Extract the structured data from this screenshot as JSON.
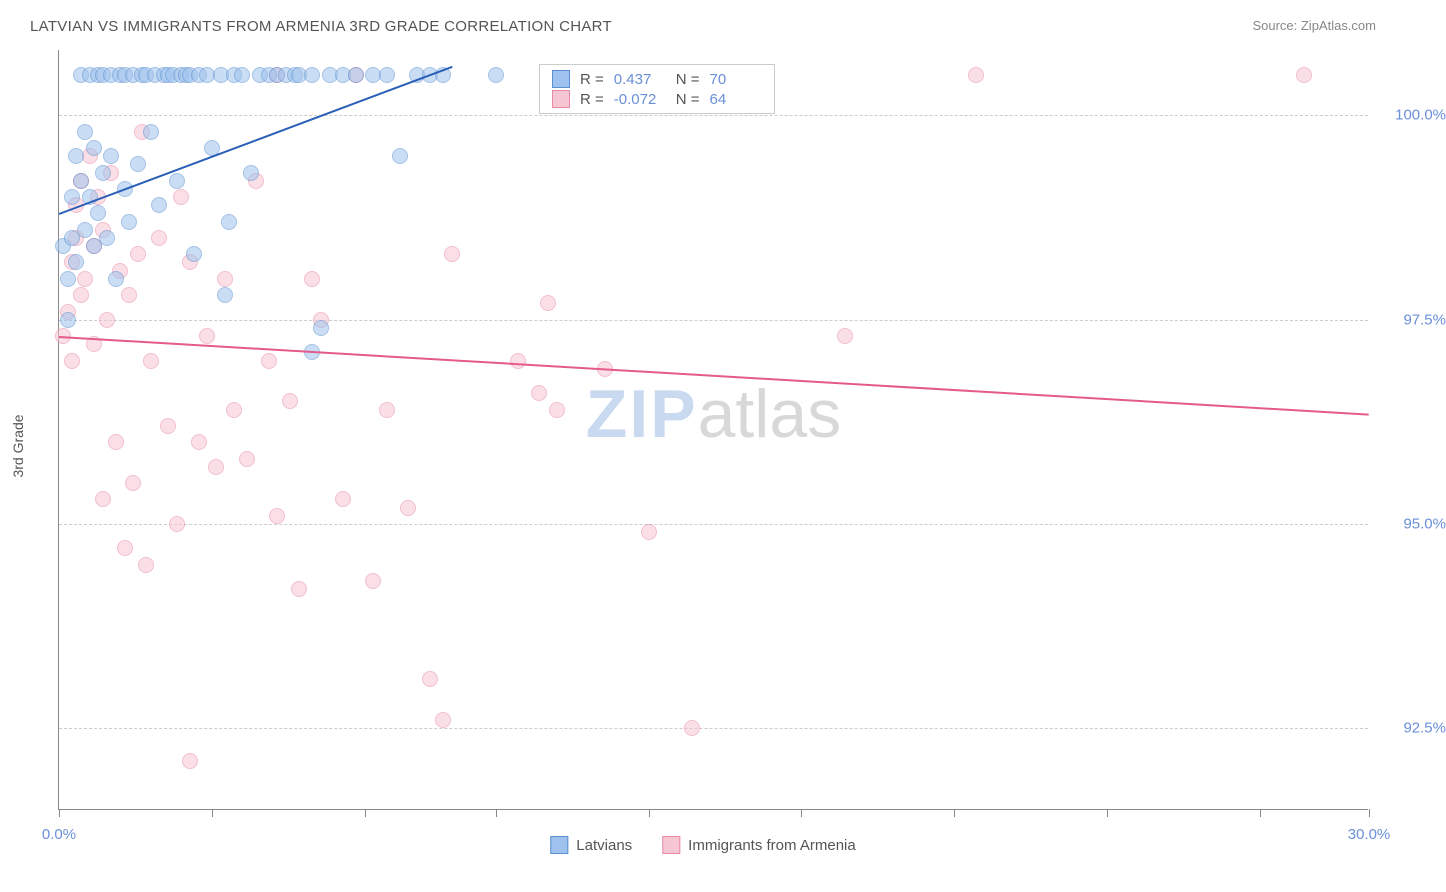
{
  "title": "LATVIAN VS IMMIGRANTS FROM ARMENIA 3RD GRADE CORRELATION CHART",
  "source_prefix": "Source: ",
  "source_name": "ZipAtlas.com",
  "y_axis_label": "3rd Grade",
  "watermark_zip": "ZIP",
  "watermark_atlas": "atlas",
  "colors": {
    "series1_fill": "#9ec2ed",
    "series1_stroke": "#5a8fd0",
    "series1_line": "#2a5fb8",
    "series2_fill": "#f6c7d3",
    "series2_stroke": "#e88aa5",
    "series2_line": "#e45a8a",
    "axis_text": "#6a8fd8",
    "grid": "#cccccc",
    "title_text": "#555555",
    "background": "#ffffff"
  },
  "xlim": [
    0,
    30
  ],
  "ylim": [
    91.5,
    100.8
  ],
  "y_ticks": [
    92.5,
    95.0,
    97.5,
    100.0
  ],
  "y_tick_labels": [
    "92.5%",
    "95.0%",
    "97.5%",
    "100.0%"
  ],
  "x_ticks": [
    0,
    3.5,
    7,
    10,
    13.5,
    17,
    20.5,
    24,
    27.5,
    30
  ],
  "x_tick_labels": {
    "0": "0.0%",
    "30": "30.0%"
  },
  "marker_diameter": 16,
  "marker_opacity": 0.55,
  "line_width": 2,
  "stats": {
    "r_label": "R =",
    "n_label": "N =",
    "series1_r": "0.437",
    "series1_n": "70",
    "series2_r": "-0.072",
    "series2_n": "64"
  },
  "legend": {
    "series1": "Latvians",
    "series2": "Immigrants from Armenia"
  },
  "trend_lines": {
    "series1": {
      "x1": 0,
      "y1": 98.8,
      "x2": 9.0,
      "y2": 100.6
    },
    "series2": {
      "x1": 0,
      "y1": 97.3,
      "x2": 30,
      "y2": 96.35
    }
  },
  "series1_points": [
    [
      0.1,
      98.4
    ],
    [
      0.2,
      97.5
    ],
    [
      0.2,
      98.0
    ],
    [
      0.3,
      99.0
    ],
    [
      0.3,
      98.5
    ],
    [
      0.4,
      99.5
    ],
    [
      0.4,
      98.2
    ],
    [
      0.5,
      100.5
    ],
    [
      0.5,
      99.2
    ],
    [
      0.6,
      98.6
    ],
    [
      0.6,
      99.8
    ],
    [
      0.7,
      100.5
    ],
    [
      0.7,
      99.0
    ],
    [
      0.8,
      98.4
    ],
    [
      0.8,
      99.6
    ],
    [
      0.9,
      100.5
    ],
    [
      0.9,
      98.8
    ],
    [
      1.0,
      99.3
    ],
    [
      1.0,
      100.5
    ],
    [
      1.1,
      98.5
    ],
    [
      1.2,
      100.5
    ],
    [
      1.2,
      99.5
    ],
    [
      1.3,
      98.0
    ],
    [
      1.4,
      100.5
    ],
    [
      1.5,
      99.1
    ],
    [
      1.5,
      100.5
    ],
    [
      1.6,
      98.7
    ],
    [
      1.7,
      100.5
    ],
    [
      1.8,
      99.4
    ],
    [
      1.9,
      100.5
    ],
    [
      2.0,
      100.5
    ],
    [
      2.1,
      99.8
    ],
    [
      2.2,
      100.5
    ],
    [
      2.3,
      98.9
    ],
    [
      2.4,
      100.5
    ],
    [
      2.5,
      100.5
    ],
    [
      2.6,
      100.5
    ],
    [
      2.7,
      99.2
    ],
    [
      2.8,
      100.5
    ],
    [
      2.9,
      100.5
    ],
    [
      3.0,
      100.5
    ],
    [
      3.1,
      98.3
    ],
    [
      3.2,
      100.5
    ],
    [
      3.4,
      100.5
    ],
    [
      3.5,
      99.6
    ],
    [
      3.7,
      100.5
    ],
    [
      3.8,
      97.8
    ],
    [
      3.9,
      98.7
    ],
    [
      4.0,
      100.5
    ],
    [
      4.2,
      100.5
    ],
    [
      4.4,
      99.3
    ],
    [
      4.6,
      100.5
    ],
    [
      4.8,
      100.5
    ],
    [
      5.0,
      100.5
    ],
    [
      5.2,
      100.5
    ],
    [
      5.4,
      100.5
    ],
    [
      5.5,
      100.5
    ],
    [
      5.8,
      100.5
    ],
    [
      6.0,
      97.4
    ],
    [
      6.2,
      100.5
    ],
    [
      6.5,
      100.5
    ],
    [
      6.8,
      100.5
    ],
    [
      7.2,
      100.5
    ],
    [
      7.5,
      100.5
    ],
    [
      7.8,
      99.5
    ],
    [
      8.2,
      100.5
    ],
    [
      8.5,
      100.5
    ],
    [
      8.8,
      100.5
    ],
    [
      10.0,
      100.5
    ],
    [
      5.8,
      97.1
    ]
  ],
  "series2_points": [
    [
      0.1,
      97.3
    ],
    [
      0.2,
      97.6
    ],
    [
      0.3,
      98.2
    ],
    [
      0.3,
      97.0
    ],
    [
      0.4,
      98.9
    ],
    [
      0.4,
      98.5
    ],
    [
      0.5,
      99.2
    ],
    [
      0.5,
      97.8
    ],
    [
      0.6,
      98.0
    ],
    [
      0.7,
      99.5
    ],
    [
      0.8,
      98.4
    ],
    [
      0.8,
      97.2
    ],
    [
      0.9,
      99.0
    ],
    [
      1.0,
      98.6
    ],
    [
      1.0,
      95.3
    ],
    [
      1.1,
      97.5
    ],
    [
      1.2,
      99.3
    ],
    [
      1.3,
      96.0
    ],
    [
      1.4,
      98.1
    ],
    [
      1.5,
      94.7
    ],
    [
      1.6,
      97.8
    ],
    [
      1.7,
      95.5
    ],
    [
      1.8,
      98.3
    ],
    [
      1.9,
      99.8
    ],
    [
      2.0,
      94.5
    ],
    [
      2.1,
      97.0
    ],
    [
      2.3,
      98.5
    ],
    [
      2.5,
      96.2
    ],
    [
      2.7,
      95.0
    ],
    [
      2.8,
      99.0
    ],
    [
      3.0,
      98.2
    ],
    [
      3.0,
      92.1
    ],
    [
      3.2,
      96.0
    ],
    [
      3.4,
      97.3
    ],
    [
      3.6,
      95.7
    ],
    [
      3.8,
      98.0
    ],
    [
      4.0,
      96.4
    ],
    [
      4.3,
      95.8
    ],
    [
      4.5,
      99.2
    ],
    [
      4.8,
      97.0
    ],
    [
      5.0,
      95.1
    ],
    [
      5.0,
      100.5
    ],
    [
      5.3,
      96.5
    ],
    [
      5.5,
      94.2
    ],
    [
      5.8,
      98.0
    ],
    [
      6.0,
      97.5
    ],
    [
      6.5,
      95.3
    ],
    [
      6.8,
      100.5
    ],
    [
      7.2,
      94.3
    ],
    [
      7.5,
      96.4
    ],
    [
      8.0,
      95.2
    ],
    [
      8.5,
      93.1
    ],
    [
      8.8,
      92.6
    ],
    [
      9.0,
      98.3
    ],
    [
      10.5,
      97.0
    ],
    [
      11.0,
      96.6
    ],
    [
      11.2,
      97.7
    ],
    [
      11.4,
      96.4
    ],
    [
      12.5,
      96.9
    ],
    [
      13.5,
      94.9
    ],
    [
      14.5,
      92.5
    ],
    [
      18.0,
      97.3
    ],
    [
      21.0,
      100.5
    ],
    [
      28.5,
      100.5
    ]
  ]
}
